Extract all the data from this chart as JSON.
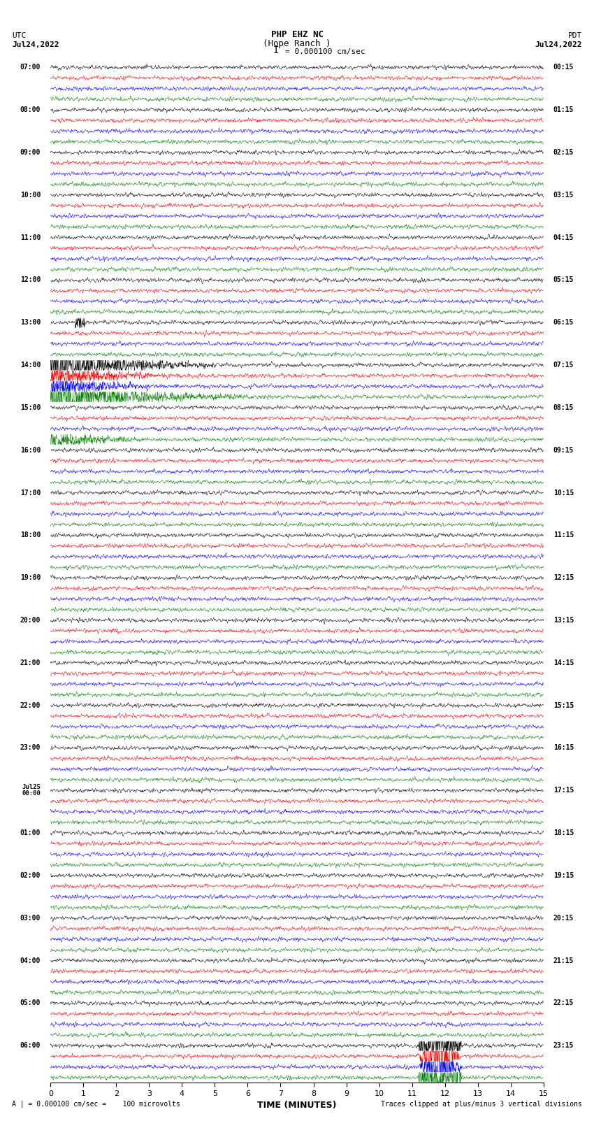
{
  "title_line1": "PHP EHZ NC",
  "title_line2": "(Hope Ranch )",
  "title_line3": "I = 0.000100 cm/sec",
  "left_header_line1": "UTC",
  "left_header_line2": "Jul24,2022",
  "right_header_line1": "PDT",
  "right_header_line2": "Jul24,2022",
  "xlabel": "TIME (MINUTES)",
  "footer_left": "A | = 0.000100 cm/sec =    100 microvolts",
  "footer_right": "Traces clipped at plus/minus 3 vertical divisions",
  "colors": [
    "black",
    "red",
    "blue",
    "green"
  ],
  "num_rows": 24,
  "traces_per_row": 4,
  "minutes": 15,
  "background_color": "white",
  "row_labels_left": [
    "07:00",
    "08:00",
    "09:00",
    "10:00",
    "11:00",
    "12:00",
    "13:00",
    "14:00",
    "15:00",
    "16:00",
    "17:00",
    "18:00",
    "19:00",
    "20:00",
    "21:00",
    "22:00",
    "23:00",
    "Jul25\n00:00",
    "01:00",
    "02:00",
    "03:00",
    "04:00",
    "05:00",
    "06:00"
  ],
  "row_labels_right": [
    "00:15",
    "01:15",
    "02:15",
    "03:15",
    "04:15",
    "05:15",
    "06:15",
    "07:15",
    "08:15",
    "09:15",
    "10:15",
    "11:15",
    "12:15",
    "13:15",
    "14:15",
    "15:15",
    "16:15",
    "17:15",
    "18:15",
    "19:15",
    "20:15",
    "21:15",
    "22:15",
    "23:15"
  ]
}
